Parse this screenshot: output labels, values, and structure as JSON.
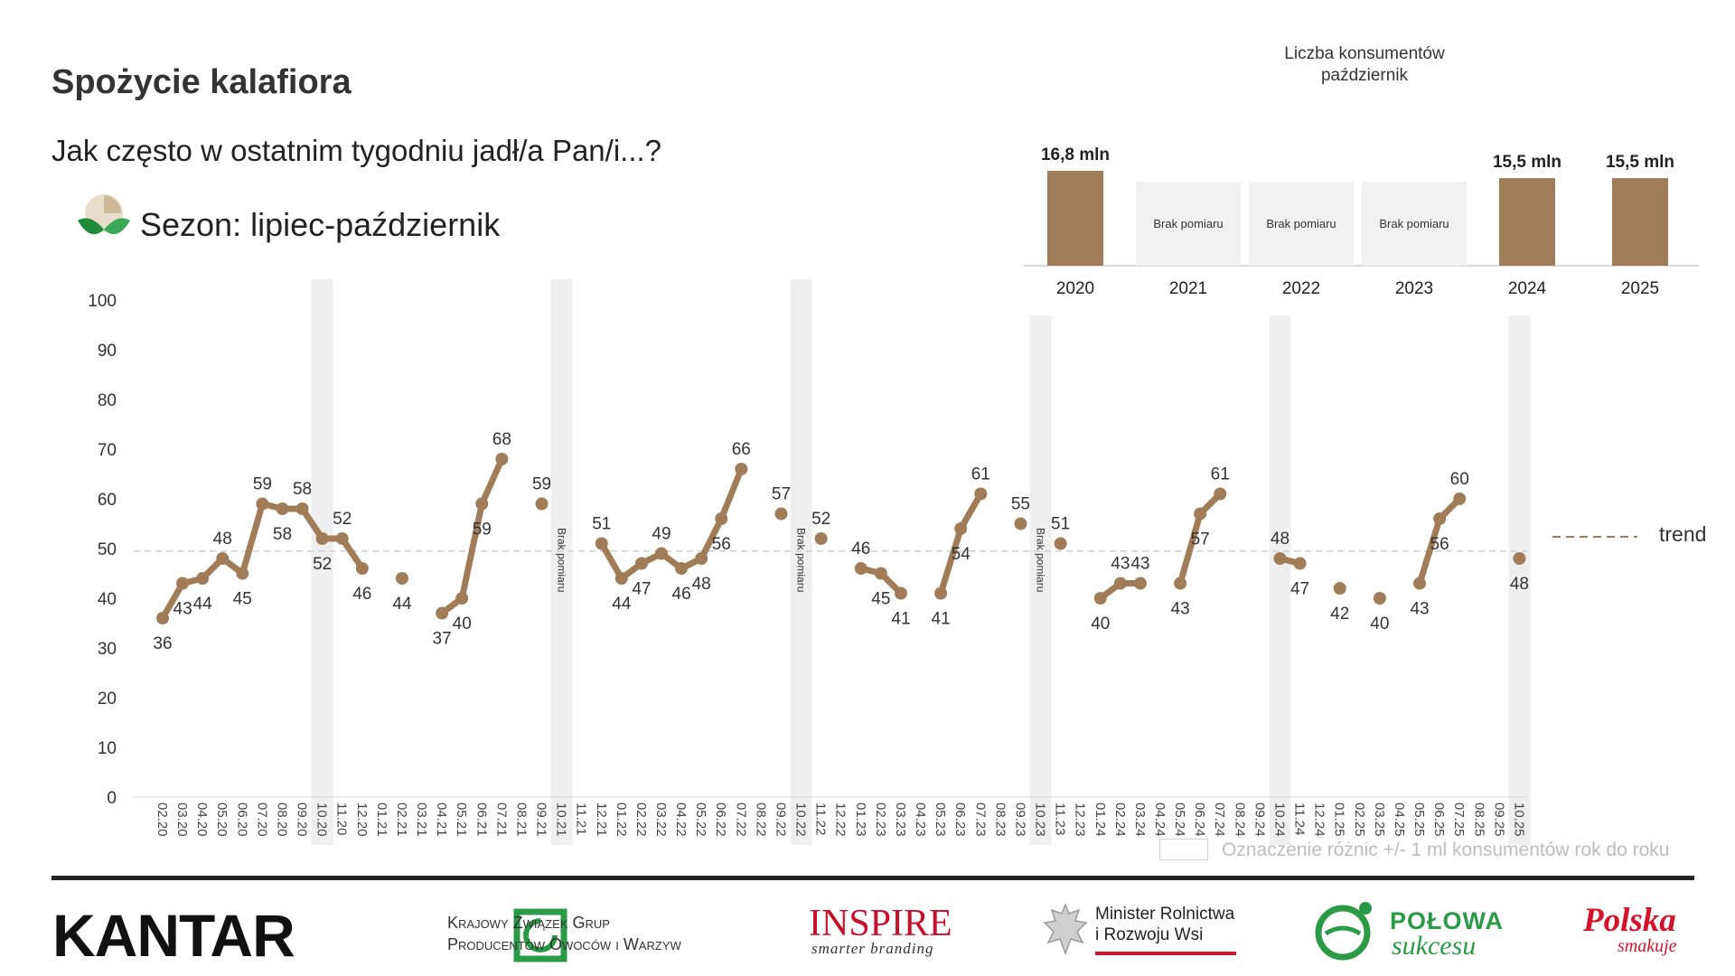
{
  "header": {
    "title": "Spożycie kalafiora",
    "subtitle": "Jak często w ostatnim tygodniu jadł/a Pan/i...?",
    "season": "Sezon: lipiec-październik"
  },
  "consumers_panel": {
    "title_line1": "Liczba konsumentów",
    "title_line2": "październik",
    "years": [
      {
        "year": "2020",
        "value": 16.8,
        "label": "16,8 mln",
        "measured": true
      },
      {
        "year": "2021",
        "value": null,
        "label": "Brak pomiaru",
        "measured": false
      },
      {
        "year": "2022",
        "value": null,
        "label": "Brak pomiaru",
        "measured": false
      },
      {
        "year": "2023",
        "value": null,
        "label": "Brak pomiaru",
        "measured": false
      },
      {
        "year": "2024",
        "value": 15.5,
        "label": "15,5 mln",
        "measured": true
      },
      {
        "year": "2025",
        "value": 15.5,
        "label": "15,5 mln",
        "measured": true
      }
    ]
  },
  "legend": {
    "trend_label": "trend",
    "note_label": "Oznaczenie różnic +/- 1 ml konsumentów rok do roku"
  },
  "chart_data": {
    "type": "line",
    "title": "",
    "xlabel": "",
    "ylabel": "",
    "ylim": [
      0,
      100
    ],
    "yticks": [
      0,
      10,
      20,
      30,
      40,
      50,
      60,
      70,
      80,
      90,
      100
    ],
    "trend_value": 49.5,
    "missing_label": "Brak pomiaru",
    "categories": [
      "02.20",
      "03.20",
      "04.20",
      "05.20",
      "06.20",
      "07.20",
      "08.20",
      "09.20",
      "10.20",
      "11.20",
      "12.20",
      "01.21",
      "02.21",
      "03.21",
      "04.21",
      "05.21",
      "06.21",
      "07.21",
      "08.21",
      "09.21",
      "10.21",
      "11.21",
      "12.21",
      "01.22",
      "02.22",
      "03.22",
      "04.22",
      "05.22",
      "06.22",
      "07.22",
      "08.22",
      "09.22",
      "10.22",
      "11.22",
      "12.22",
      "01.23",
      "02.23",
      "03.23",
      "04.23",
      "05.23",
      "06.23",
      "07.23",
      "08.23",
      "09.23",
      "10.23",
      "11.23",
      "12.23",
      "01.24",
      "02.24",
      "03.24",
      "04.24",
      "05.24",
      "06.24",
      "07.24",
      "08.24",
      "09.24",
      "10.24",
      "11.24",
      "12.24",
      "01.25",
      "02.25",
      "03.25",
      "04.25",
      "05.25",
      "06.25",
      "07.25",
      "08.25",
      "09.25",
      "10.25"
    ],
    "values": [
      36,
      43,
      44,
      48,
      45,
      59,
      58,
      58,
      52,
      52,
      46,
      null,
      44,
      null,
      37,
      40,
      59,
      68,
      null,
      59,
      null,
      null,
      51,
      44,
      47,
      49,
      46,
      48,
      56,
      66,
      null,
      57,
      null,
      52,
      null,
      46,
      45,
      41,
      null,
      41,
      54,
      61,
      null,
      55,
      null,
      51,
      null,
      40,
      43,
      43,
      null,
      43,
      57,
      61,
      null,
      null,
      48,
      47,
      null,
      42,
      null,
      40,
      null,
      43,
      56,
      60,
      null,
      null,
      48
    ],
    "october_bands": [
      "10.20",
      "10.21",
      "10.22",
      "10.23",
      "10.24",
      "10.25"
    ],
    "missing_octobers": [
      "10.21",
      "10.22",
      "10.23"
    ]
  },
  "logos": {
    "kantar": "KANTAR",
    "kzg_line1": "Krajowy Związek Grup",
    "kzg_line2": "Producentów Owoców i Warzyw",
    "inspire": "INSPIRE",
    "inspire_sub": "smarter branding",
    "minister_line1": "Minister Rolnictwa",
    "minister_line2": "i Rozwoju Wsi",
    "polowa": "POŁOWA",
    "polowa_sub": "sukcesu",
    "polska": "Polska",
    "polska_sub": "smakuje"
  },
  "colors": {
    "series": "#a07d58",
    "bar": "#a07d58",
    "band": "#efefef",
    "missing_bar": "#f1f1f1",
    "trend": "#b8a58a"
  }
}
